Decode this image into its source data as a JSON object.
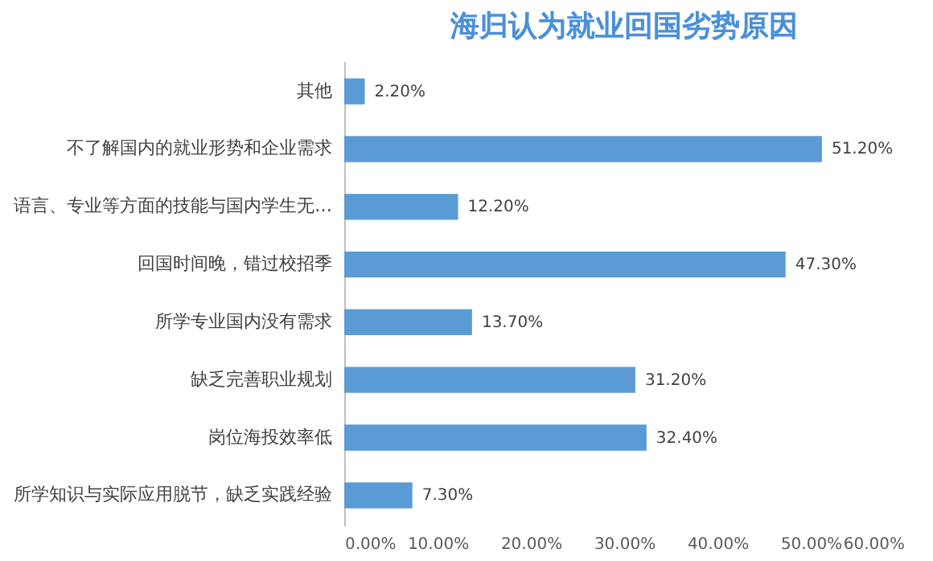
{
  "chart_data": {
    "type": "bar",
    "orientation": "horizontal",
    "title": "海归认为就业回国劣势原因",
    "categories": [
      "其他",
      "不了解国内的就业形势和企业需求",
      "语言、专业等方面的技能与国内学生无…",
      "回国时间晚，错过校招季",
      "所学专业国内没有需求",
      "缺乏完善职业规划",
      "岗位海投效率低",
      "所学知识与实际应用脱节，缺乏实践经验"
    ],
    "values": [
      2.2,
      51.2,
      12.2,
      47.3,
      13.7,
      31.2,
      32.4,
      7.3
    ],
    "value_labels": [
      "2.20%",
      "51.20%",
      "12.20%",
      "47.30%",
      "13.70%",
      "31.20%",
      "32.40%",
      "7.30%"
    ],
    "color": "#5b9bd5",
    "xlim": [
      0,
      60
    ],
    "xticks": [
      {
        "value": 0,
        "label": "0.00%"
      },
      {
        "value": 10,
        "label": "10.00%"
      },
      {
        "value": 20,
        "label": "20.00%"
      },
      {
        "value": 30,
        "label": "30.00%"
      },
      {
        "value": 40,
        "label": "40.00%"
      },
      {
        "value": 50,
        "label": "50.00%"
      },
      {
        "value": 60,
        "label": "60.00%"
      }
    ],
    "grid": false
  }
}
